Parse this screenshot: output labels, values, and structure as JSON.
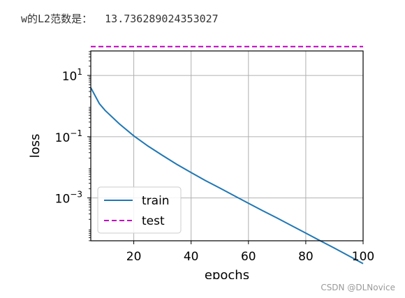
{
  "output": {
    "label": "w的L2范数是：",
    "value": "13.736289024353027"
  },
  "watermark": "CSDN @DLNovice",
  "chart_data": {
    "type": "line",
    "xlabel": "epochs",
    "ylabel": "loss",
    "xlim": [
      5,
      100
    ],
    "ylim_log10": [
      -4.4,
      1.8
    ],
    "yscale": "log",
    "grid": true,
    "legend_position": "bottom-left",
    "x_ticks": [
      20,
      40,
      60,
      80,
      100
    ],
    "y_ticks": [
      {
        "base": "10",
        "exp": "1",
        "log10": 1
      },
      {
        "base": "10",
        "exp": "−1",
        "log10": -1
      },
      {
        "base": "10",
        "exp": "−3",
        "log10": -3
      }
    ],
    "series": [
      {
        "name": "train",
        "color": "#1f77b4",
        "dash": "solid",
        "x": [
          5,
          8,
          10,
          15,
          20,
          25,
          30,
          35,
          40,
          45,
          50,
          55,
          60,
          65,
          70,
          75,
          80,
          85,
          90,
          95,
          100
        ],
        "y": [
          4.0,
          1.2,
          0.72,
          0.26,
          0.106,
          0.049,
          0.0245,
          0.0125,
          0.0067,
          0.0037,
          0.0021,
          0.00118,
          0.00067,
          0.00038,
          0.00022,
          0.000125,
          7.1e-05,
          4e-05,
          2.3e-05,
          1.28e-05,
          7.1e-06
        ]
      },
      {
        "name": "test",
        "color": "#bf00bf",
        "dash": "dashed",
        "x": [
          5,
          100
        ],
        "y": [
          88,
          88
        ]
      }
    ]
  }
}
